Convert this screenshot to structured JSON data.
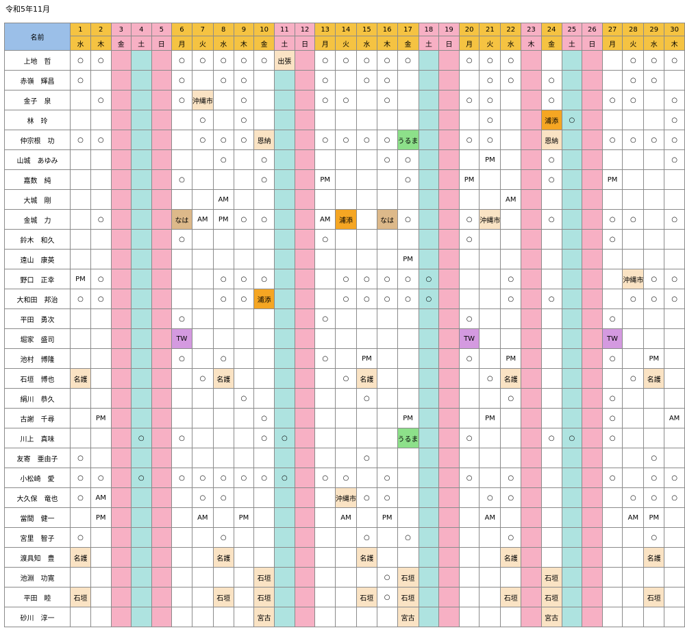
{
  "title": "令和5年11月",
  "header_name": "名前",
  "days": [
    {
      "d": "1",
      "w": "水",
      "t": "wd"
    },
    {
      "d": "2",
      "w": "木",
      "t": "wd"
    },
    {
      "d": "3",
      "w": "金",
      "t": "hol"
    },
    {
      "d": "4",
      "w": "土",
      "t": "sat"
    },
    {
      "d": "5",
      "w": "日",
      "t": "sun"
    },
    {
      "d": "6",
      "w": "月",
      "t": "wd"
    },
    {
      "d": "7",
      "w": "火",
      "t": "wd"
    },
    {
      "d": "8",
      "w": "水",
      "t": "wd"
    },
    {
      "d": "9",
      "w": "木",
      "t": "wd"
    },
    {
      "d": "10",
      "w": "金",
      "t": "wd"
    },
    {
      "d": "11",
      "w": "土",
      "t": "sat"
    },
    {
      "d": "12",
      "w": "日",
      "t": "sun"
    },
    {
      "d": "13",
      "w": "月",
      "t": "wd"
    },
    {
      "d": "14",
      "w": "火",
      "t": "wd"
    },
    {
      "d": "15",
      "w": "水",
      "t": "wd"
    },
    {
      "d": "16",
      "w": "木",
      "t": "wd"
    },
    {
      "d": "17",
      "w": "金",
      "t": "wd"
    },
    {
      "d": "18",
      "w": "土",
      "t": "sat"
    },
    {
      "d": "19",
      "w": "日",
      "t": "sun"
    },
    {
      "d": "20",
      "w": "月",
      "t": "wd"
    },
    {
      "d": "21",
      "w": "火",
      "t": "wd"
    },
    {
      "d": "22",
      "w": "水",
      "t": "wd"
    },
    {
      "d": "23",
      "w": "木",
      "t": "hol"
    },
    {
      "d": "24",
      "w": "金",
      "t": "wd"
    },
    {
      "d": "25",
      "w": "土",
      "t": "sat"
    },
    {
      "d": "26",
      "w": "日",
      "t": "sun"
    },
    {
      "d": "27",
      "w": "月",
      "t": "wd"
    },
    {
      "d": "28",
      "w": "火",
      "t": "wd"
    },
    {
      "d": "29",
      "w": "水",
      "t": "wd"
    },
    {
      "d": "30",
      "w": "木",
      "t": "wd"
    }
  ],
  "legend_colors": {
    "highlight": "#fae3c4",
    "orange": "#f5a623",
    "green": "#8de08a",
    "tan": "#ddb98a",
    "purple": "#d49ae0",
    "saturday": "#aee3e0",
    "holiday": "#f7b0c4",
    "header": "#f5c342",
    "name_header": "#9bbfe8"
  },
  "rows": [
    {
      "name": "上地　哲",
      "cells": {
        "1": "○",
        "2": "○",
        "6": "○",
        "7": "○",
        "8": "○",
        "9": "○",
        "10": "○",
        "11": "出張|hl",
        "13": "○",
        "14": "○",
        "15": "○",
        "16": "○",
        "17": "○",
        "20": "○",
        "21": "○",
        "22": "○",
        "28": "○",
        "29": "○",
        "30": "○"
      }
    },
    {
      "name": "赤嶺　輝昌",
      "cells": {
        "1": "○",
        "6": "○",
        "8": "○",
        "9": "○",
        "13": "○",
        "15": "○",
        "16": "○",
        "21": "○",
        "22": "○",
        "24": "○",
        "28": "○",
        "29": "○"
      }
    },
    {
      "name": "金子　泉",
      "cells": {
        "2": "○",
        "6": "○",
        "7": "沖縄市|hl-sm",
        "9": "○",
        "13": "○",
        "14": "○",
        "16": "○",
        "20": "○",
        "21": "○",
        "24": "○",
        "27": "○",
        "28": "○",
        "30": "○"
      }
    },
    {
      "name": "林　玲",
      "cells": {
        "7": "○",
        "9": "○",
        "21": "○",
        "24": "浦添|or",
        "25": "○",
        "30": "○"
      }
    },
    {
      "name": "仲宗根　功",
      "cells": {
        "1": "○",
        "2": "○",
        "7": "○",
        "8": "○",
        "9": "○",
        "10": "恩納|hl",
        "13": "○",
        "14": "○",
        "15": "○",
        "16": "○",
        "17": "うるま|gr",
        "20": "○",
        "21": "○",
        "24": "恩納|hl",
        "27": "○",
        "28": "○",
        "29": "○",
        "30": "○"
      }
    },
    {
      "name": "山城　あゆみ",
      "cells": {
        "8": "○",
        "10": "○",
        "16": "○",
        "17": "○",
        "21": "PM",
        "24": "○",
        "30": "○"
      }
    },
    {
      "name": "嘉数　純",
      "cells": {
        "6": "○",
        "10": "○",
        "13": "PM",
        "17": "○",
        "20": "PM",
        "24": "○",
        "27": "PM"
      }
    },
    {
      "name": "大城　剛",
      "cells": {
        "8": "AM",
        "22": "AM"
      }
    },
    {
      "name": "金城　力",
      "cells": {
        "2": "○",
        "6": "なは|tan",
        "7": "AM",
        "8": "PM",
        "9": "○",
        "10": "○",
        "13": "AM",
        "14": "浦添|or",
        "16": "なは|tan",
        "17": "○",
        "20": "○",
        "21": "沖縄市|hl-sm",
        "24": "○",
        "27": "○",
        "28": "○",
        "30": "○"
      }
    },
    {
      "name": "鈴木　和久",
      "cells": {
        "6": "○",
        "13": "○",
        "20": "○",
        "27": "○"
      }
    },
    {
      "name": "遠山　康英",
      "cells": {
        "17": "PM"
      }
    },
    {
      "name": "野口　正幸",
      "cells": {
        "1": "PM",
        "2": "○",
        "8": "○",
        "9": "○",
        "10": "○",
        "14": "○",
        "15": "○",
        "16": "○",
        "17": "○",
        "18": "○",
        "22": "○",
        "28": "沖縄市|hl-sm",
        "29": "○",
        "30": "○"
      }
    },
    {
      "name": "大和田　邦治",
      "cells": {
        "1": "○",
        "2": "○",
        "8": "○",
        "9": "○",
        "10": "浦添|or",
        "14": "○",
        "15": "○",
        "16": "○",
        "17": "○",
        "18": "○",
        "22": "○",
        "24": "○",
        "28": "○",
        "29": "○",
        "30": "○"
      }
    },
    {
      "name": "平田　勇次",
      "cells": {
        "6": "○",
        "13": "○",
        "20": "○",
        "27": "○"
      }
    },
    {
      "name": "堀家　盛司",
      "cells": {
        "6": "TW|pu",
        "20": "TW|pu",
        "27": "TW|pu"
      }
    },
    {
      "name": "池村　博隆",
      "cells": {
        "6": "○",
        "8": "○",
        "13": "○",
        "15": "PM",
        "20": "○",
        "22": "PM",
        "27": "○",
        "29": "PM"
      }
    },
    {
      "name": "石垣　博也",
      "cells": {
        "1": "名護|hl",
        "7": "○",
        "8": "名護|hl",
        "14": "○",
        "15": "名護|hl",
        "21": "○",
        "22": "名護|hl",
        "28": "○",
        "29": "名護|hl"
      }
    },
    {
      "name": "絹川　恭久",
      "cells": {
        "9": "○",
        "15": "○",
        "22": "○",
        "27": "○"
      }
    },
    {
      "name": "古謝　千尋",
      "cells": {
        "2": "PM",
        "10": "○",
        "17": "PM",
        "21": "PM",
        "27": "○",
        "30": "AM"
      }
    },
    {
      "name": "川上　真味",
      "cells": {
        "4": "○",
        "6": "○",
        "10": "○",
        "11": "○",
        "17": "うるま|gr",
        "20": "○",
        "24": "○",
        "25": "○",
        "27": "○"
      }
    },
    {
      "name": "友寄　亜由子",
      "cells": {
        "1": "○",
        "15": "○",
        "29": "○"
      }
    },
    {
      "name": "小松崎　愛",
      "cells": {
        "1": "○",
        "2": "○",
        "4": "○",
        "6": "○",
        "7": "○",
        "8": "○",
        "9": "○",
        "10": "○",
        "11": "○",
        "13": "○",
        "14": "○",
        "16": "○",
        "20": "○",
        "22": "○",
        "27": "○",
        "29": "○",
        "30": "○"
      }
    },
    {
      "name": "大久保　竜也",
      "cells": {
        "1": "○",
        "2": "AM",
        "7": "○",
        "8": "○",
        "14": "沖縄市|hl-sm",
        "15": "○",
        "16": "○",
        "21": "○",
        "22": "○",
        "28": "○",
        "29": "○",
        "30": "○"
      }
    },
    {
      "name": "當間　健一",
      "cells": {
        "2": "PM",
        "7": "AM",
        "9": "PM",
        "14": "AM",
        "16": "PM",
        "21": "AM",
        "28": "AM",
        "29": "PM"
      }
    },
    {
      "name": "宮里　智子",
      "cells": {
        "1": "○",
        "8": "○",
        "15": "○",
        "17": "○",
        "22": "○",
        "29": "○"
      }
    },
    {
      "name": "渡具知　豊",
      "cells": {
        "1": "名護|hl",
        "8": "名護|hl",
        "15": "名護|hl",
        "22": "名護|hl",
        "29": "名護|hl"
      }
    },
    {
      "name": "池淵　功寛",
      "cells": {
        "10": "石垣|hl",
        "16": "○",
        "17": "石垣|hl",
        "24": "石垣|hl"
      }
    },
    {
      "name": "平田　睦",
      "cells": {
        "1": "石垣|hl",
        "8": "石垣|hl",
        "10": "石垣|hl",
        "15": "石垣|hl",
        "16": "○",
        "17": "石垣|hl",
        "22": "石垣|hl",
        "24": "石垣|hl",
        "29": "石垣|hl"
      }
    },
    {
      "name": "砂川　淳一",
      "cells": {
        "10": "宮古|hl",
        "17": "宮古|hl",
        "24": "宮古|hl"
      }
    }
  ]
}
